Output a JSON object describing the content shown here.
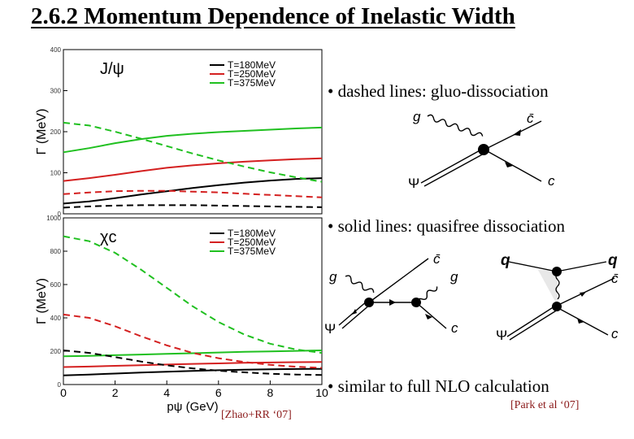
{
  "title": "2.6.2 Momentum Dependence of Inelastic Width",
  "bullets": [
    "• dashed lines: gluo-dissociation",
    "• solid lines: quasifree dissociation",
    "• similar to full NLO calculation"
  ],
  "citations": {
    "left": "[Zhao+RR ‘07]",
    "right": "[Park et al ‘07]"
  },
  "colors": {
    "T180": "#000000",
    "T250": "#d42020",
    "T375": "#20c020"
  },
  "chart_data": [
    {
      "type": "line",
      "label": "J/ψ",
      "ylabel": "Γ (MeV)",
      "xlabel": "",
      "xlim": [
        0,
        10
      ],
      "ylim": [
        0,
        400
      ],
      "yticks": [
        0,
        100,
        200,
        300,
        400
      ],
      "legend": [
        "T=180MeV",
        "T=250MeV",
        "T=375MeV"
      ],
      "legend_position": "top-right",
      "x": [
        0,
        1,
        2,
        3,
        4,
        5,
        6,
        7,
        8,
        9,
        10
      ],
      "series": [
        {
          "name": "T=180MeV",
          "style": "solid",
          "values": [
            25,
            30,
            38,
            47,
            55,
            63,
            70,
            76,
            81,
            85,
            87
          ]
        },
        {
          "name": "T=250MeV",
          "style": "solid",
          "values": [
            80,
            87,
            95,
            104,
            112,
            118,
            123,
            127,
            130,
            133,
            135
          ]
        },
        {
          "name": "T=375MeV",
          "style": "solid",
          "values": [
            150,
            160,
            172,
            182,
            190,
            195,
            199,
            202,
            205,
            208,
            210
          ]
        },
        {
          "name": "T=180MeV",
          "style": "dashed",
          "values": [
            15,
            18,
            20,
            21,
            21,
            21,
            20,
            19,
            18,
            17,
            16
          ]
        },
        {
          "name": "T=250MeV",
          "style": "dashed",
          "values": [
            48,
            52,
            55,
            56,
            56,
            54,
            52,
            49,
            46,
            43,
            40
          ]
        },
        {
          "name": "T=375MeV",
          "style": "dashed",
          "values": [
            222,
            215,
            200,
            183,
            165,
            147,
            130,
            115,
            101,
            89,
            78
          ]
        }
      ]
    },
    {
      "type": "line",
      "label": "χc",
      "ylabel": "Γ (MeV)",
      "xlabel": "pψ (GeV)",
      "xlim": [
        0,
        10
      ],
      "ylim": [
        0,
        1000
      ],
      "yticks": [
        0,
        200,
        400,
        600,
        800,
        1000
      ],
      "xticks": [
        0,
        2,
        4,
        6,
        8,
        10
      ],
      "legend": [
        "T=180MeV",
        "T=250MeV",
        "T=375MeV"
      ],
      "legend_position": "top-right",
      "x": [
        0,
        1,
        2,
        3,
        4,
        5,
        6,
        7,
        8,
        9,
        10
      ],
      "series": [
        {
          "name": "T=180MeV",
          "style": "solid",
          "values": [
            55,
            60,
            66,
            72,
            77,
            82,
            86,
            89,
            91,
            93,
            94
          ]
        },
        {
          "name": "T=250MeV",
          "style": "solid",
          "values": [
            105,
            108,
            112,
            116,
            120,
            124,
            127,
            130,
            132,
            134,
            135
          ]
        },
        {
          "name": "T=375MeV",
          "style": "solid",
          "values": [
            170,
            172,
            176,
            180,
            184,
            188,
            192,
            196,
            199,
            202,
            205
          ]
        },
        {
          "name": "T=180MeV",
          "style": "dashed",
          "values": [
            205,
            190,
            165,
            138,
            115,
            97,
            83,
            73,
            65,
            60,
            57
          ]
        },
        {
          "name": "T=250MeV",
          "style": "dashed",
          "values": [
            420,
            400,
            350,
            290,
            235,
            190,
            158,
            135,
            118,
            107,
            100
          ]
        },
        {
          "name": "T=375MeV",
          "style": "dashed",
          "values": [
            890,
            860,
            790,
            690,
            580,
            470,
            375,
            300,
            245,
            210,
            190
          ]
        }
      ]
    }
  ],
  "diagrams": {
    "gluo": {
      "labels": {
        "g": "g",
        "c_bar": "c̄",
        "c": "c",
        "psi": "Ψ"
      }
    },
    "quasifree_gluon": {
      "labels": {
        "g_in": "g",
        "g_out": "g",
        "c_bar": "c̄",
        "c": "c",
        "psi": "Ψ"
      }
    },
    "quasifree_quark": {
      "labels": {
        "q_in": "q",
        "q_out": "q",
        "c_bar": "c̄",
        "c": "c",
        "psi": "Ψ"
      }
    }
  }
}
